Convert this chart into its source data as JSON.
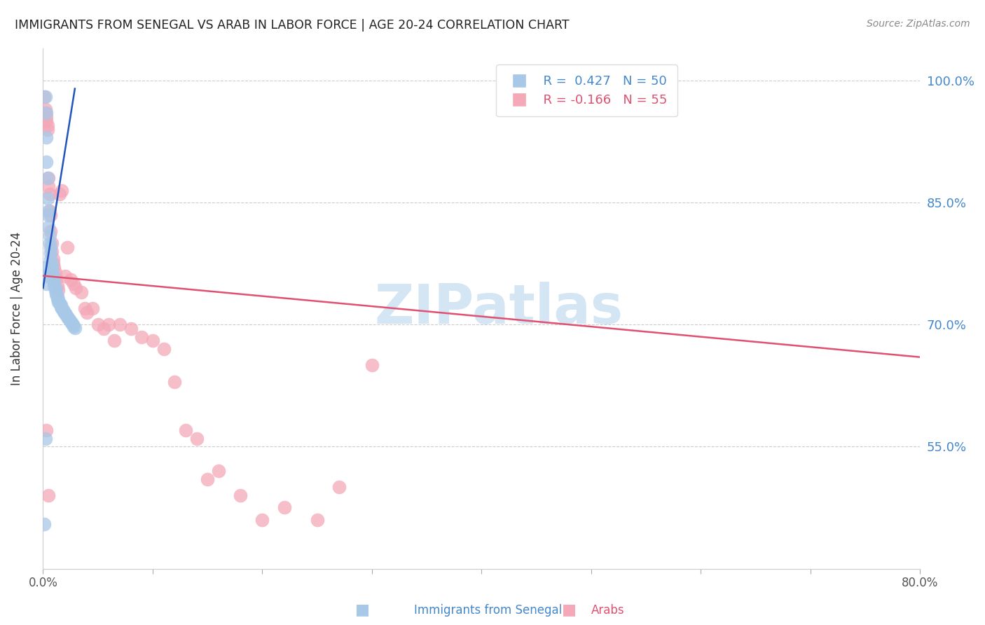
{
  "title": "IMMIGRANTS FROM SENEGAL VS ARAB IN LABOR FORCE | AGE 20-24 CORRELATION CHART",
  "source": "Source: ZipAtlas.com",
  "ylabel": "In Labor Force | Age 20-24",
  "xlim": [
    0.0,
    0.8
  ],
  "ylim": [
    0.4,
    1.04
  ],
  "right_yticks": [
    1.0,
    0.85,
    0.7,
    0.55
  ],
  "right_yticklabels": [
    "100.0%",
    "85.0%",
    "70.0%",
    "55.0%"
  ],
  "xticks": [
    0.0,
    0.1,
    0.2,
    0.3,
    0.4,
    0.5,
    0.6,
    0.7,
    0.8
  ],
  "xticklabels": [
    "0.0%",
    "",
    "",
    "",
    "",
    "",
    "",
    "",
    "80.0%"
  ],
  "legend_blue_r": "R =  0.427",
  "legend_blue_n": "N = 50",
  "legend_pink_r": "R = -0.166",
  "legend_pink_n": "N = 55",
  "blue_color": "#a8c8e8",
  "pink_color": "#f4a8b8",
  "blue_line_color": "#2255bb",
  "pink_line_color": "#e05070",
  "watermark": "ZIPatlas",
  "watermark_color": "#b8d4ee",
  "senegal_x": [
    0.001,
    0.002,
    0.002,
    0.003,
    0.003,
    0.003,
    0.004,
    0.004,
    0.005,
    0.005,
    0.005,
    0.006,
    0.006,
    0.007,
    0.007,
    0.007,
    0.008,
    0.008,
    0.008,
    0.009,
    0.009,
    0.01,
    0.01,
    0.011,
    0.011,
    0.012,
    0.012,
    0.013,
    0.013,
    0.014,
    0.014,
    0.015,
    0.016,
    0.016,
    0.017,
    0.018,
    0.019,
    0.02,
    0.021,
    0.022,
    0.023,
    0.024,
    0.025,
    0.026,
    0.027,
    0.028,
    0.029,
    0.001,
    0.002,
    0.003
  ],
  "senegal_y": [
    0.455,
    0.98,
    0.56,
    0.96,
    0.93,
    0.9,
    0.88,
    0.855,
    0.84,
    0.835,
    0.82,
    0.81,
    0.8,
    0.795,
    0.788,
    0.78,
    0.775,
    0.77,
    0.765,
    0.76,
    0.755,
    0.752,
    0.748,
    0.745,
    0.742,
    0.74,
    0.737,
    0.735,
    0.732,
    0.73,
    0.728,
    0.726,
    0.724,
    0.722,
    0.72,
    0.718,
    0.716,
    0.714,
    0.712,
    0.71,
    0.708,
    0.706,
    0.704,
    0.702,
    0.7,
    0.698,
    0.696,
    0.77,
    0.76,
    0.75
  ],
  "arab_x": [
    0.001,
    0.002,
    0.002,
    0.003,
    0.003,
    0.004,
    0.004,
    0.005,
    0.005,
    0.006,
    0.006,
    0.007,
    0.007,
    0.008,
    0.008,
    0.009,
    0.009,
    0.01,
    0.011,
    0.012,
    0.013,
    0.014,
    0.015,
    0.017,
    0.02,
    0.022,
    0.025,
    0.028,
    0.03,
    0.035,
    0.038,
    0.04,
    0.045,
    0.05,
    0.055,
    0.06,
    0.065,
    0.07,
    0.08,
    0.09,
    0.1,
    0.11,
    0.12,
    0.13,
    0.14,
    0.15,
    0.16,
    0.18,
    0.2,
    0.22,
    0.25,
    0.27,
    0.3,
    0.003,
    0.005
  ],
  "arab_y": [
    0.98,
    0.965,
    0.96,
    0.955,
    0.95,
    0.945,
    0.94,
    0.88,
    0.87,
    0.86,
    0.84,
    0.835,
    0.815,
    0.8,
    0.79,
    0.78,
    0.775,
    0.77,
    0.764,
    0.756,
    0.748,
    0.742,
    0.86,
    0.865,
    0.76,
    0.795,
    0.755,
    0.75,
    0.745,
    0.74,
    0.72,
    0.715,
    0.72,
    0.7,
    0.695,
    0.7,
    0.68,
    0.7,
    0.695,
    0.685,
    0.68,
    0.67,
    0.63,
    0.57,
    0.56,
    0.51,
    0.52,
    0.49,
    0.46,
    0.475,
    0.46,
    0.5,
    0.65,
    0.57,
    0.49
  ],
  "blue_trend_x0": 0.0,
  "blue_trend_x1": 0.029,
  "blue_trend_y0": 0.745,
  "blue_trend_y1": 0.99,
  "pink_trend_x0": 0.0,
  "pink_trend_x1": 0.8,
  "pink_trend_y0": 0.76,
  "pink_trend_y1": 0.66
}
